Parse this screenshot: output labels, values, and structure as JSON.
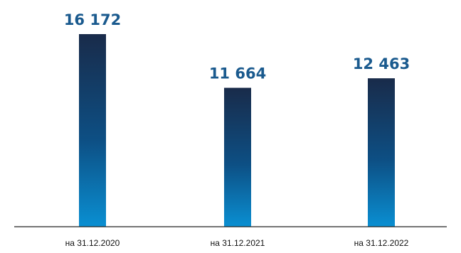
{
  "chart_data": {
    "type": "bar",
    "title": "",
    "xlabel": "",
    "ylabel": "",
    "categories": [
      "на 31.12.2020",
      "на 31.12.2021",
      "на 31.12.2022"
    ],
    "values": [
      16172,
      11664,
      12463
    ],
    "value_labels": [
      "16 172",
      "11 664",
      "12 463"
    ],
    "ylim": [
      0,
      16172
    ],
    "grid": false,
    "legend": "none",
    "colors": {
      "bar_top": "#192b4a",
      "bar_mid": "#0d4f84",
      "bar_bottom": "#0a8fd2",
      "value_label": "#1a5a8e",
      "axis": "#222222"
    }
  }
}
